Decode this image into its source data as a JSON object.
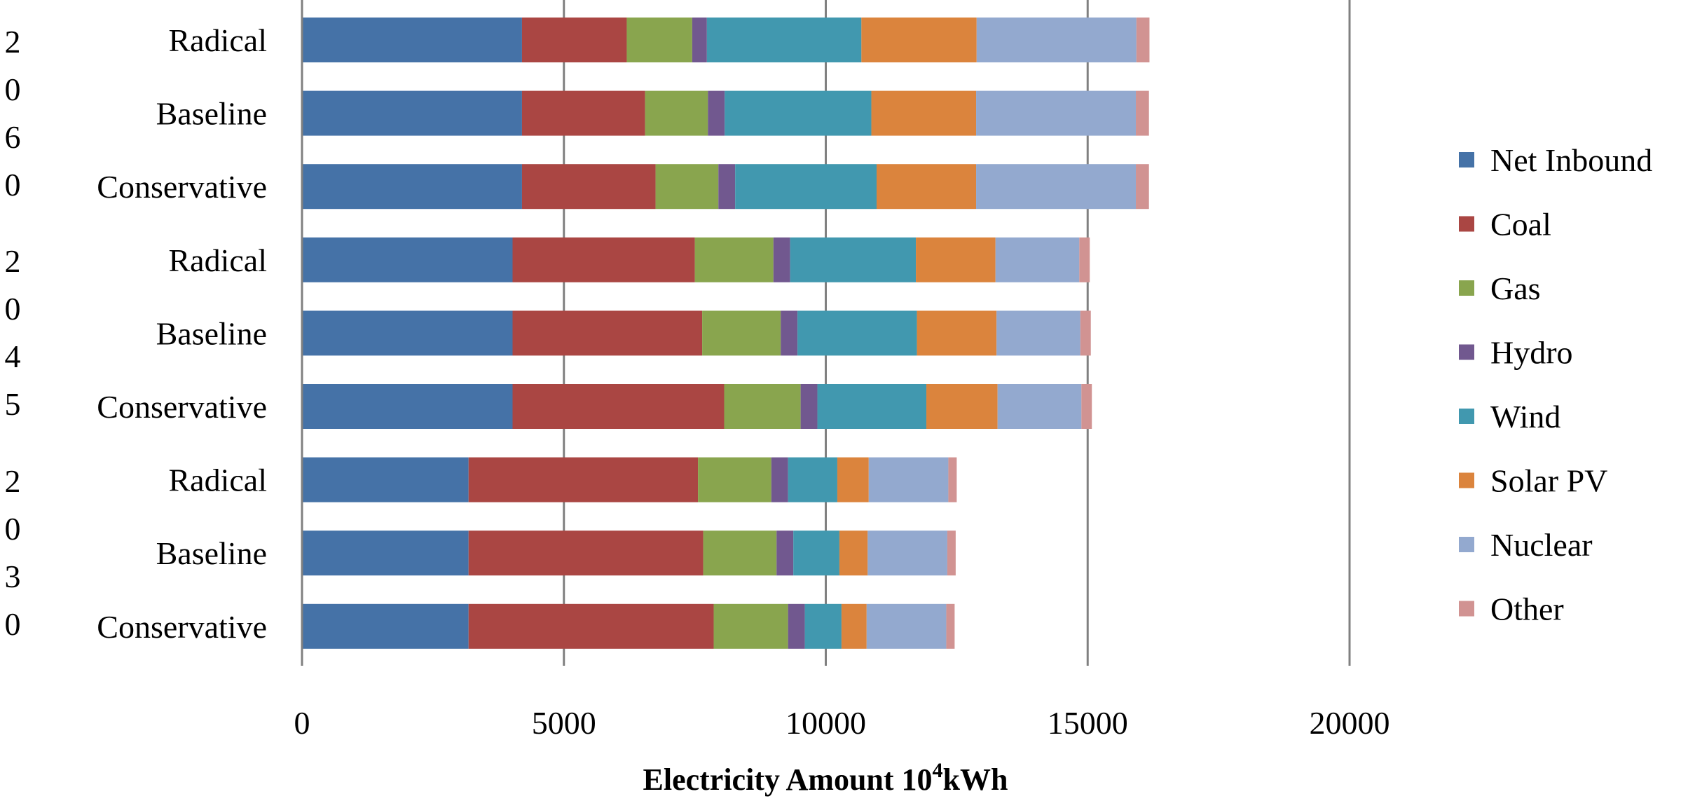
{
  "chart_data": {
    "type": "bar",
    "orientation": "horizontal",
    "stacked": true,
    "xlabel": "Electricity Amount  10",
    "xlabel_superscript": "4",
    "xlabel_suffix": "kWh",
    "xlim": [
      0,
      20000
    ],
    "xticks": [
      "0",
      "5000",
      "10000",
      "15000",
      "20000"
    ],
    "grid": true,
    "legend_position": "right",
    "groups": [
      {
        "year_chars": [
          "2",
          "0",
          "6",
          "0"
        ],
        "categories": [
          "Radical",
          "Baseline",
          "Conservative"
        ]
      },
      {
        "year_chars": [
          "2",
          "0",
          "4",
          "5"
        ],
        "categories": [
          "Radical",
          "Baseline",
          "Conservative"
        ]
      },
      {
        "year_chars": [
          "2",
          "0",
          "3",
          "0"
        ],
        "categories": [
          "Radical",
          "Baseline",
          "Conservative"
        ]
      }
    ],
    "bars": [
      {
        "label": "Radical",
        "values": [
          4200,
          2000,
          1250,
          280,
          2950,
          2200,
          3050,
          250
        ]
      },
      {
        "label": "Baseline",
        "values": [
          4200,
          2350,
          1200,
          320,
          2800,
          2000,
          3050,
          250
        ]
      },
      {
        "label": "Conservative",
        "values": [
          4200,
          2550,
          1200,
          320,
          2700,
          1900,
          3050,
          250
        ]
      },
      {
        "label": "Radical",
        "values": [
          4020,
          3480,
          1500,
          320,
          2400,
          1520,
          1600,
          200
        ]
      },
      {
        "label": "Baseline",
        "values": [
          4020,
          3620,
          1500,
          320,
          2280,
          1520,
          1600,
          200
        ]
      },
      {
        "label": "Conservative",
        "values": [
          4020,
          4040,
          1460,
          320,
          2080,
          1360,
          1600,
          200
        ]
      },
      {
        "label": "Radical",
        "values": [
          3180,
          4380,
          1400,
          320,
          940,
          600,
          1520,
          160
        ]
      },
      {
        "label": "Baseline",
        "values": [
          3180,
          4480,
          1400,
          320,
          880,
          540,
          1520,
          160
        ]
      },
      {
        "label": "Conservative",
        "values": [
          3180,
          4680,
          1420,
          320,
          700,
          480,
          1520,
          160
        ]
      }
    ],
    "series": [
      {
        "name": "Net Inbound",
        "color": "#4572a7"
      },
      {
        "name": "Coal",
        "color": "#aa4643"
      },
      {
        "name": "Gas",
        "color": "#89a54e"
      },
      {
        "name": "Hydro",
        "color": "#71588f"
      },
      {
        "name": "Wind",
        "color": "#4198af"
      },
      {
        "name": "Solar PV",
        "color": "#db843d"
      },
      {
        "name": "Nuclear",
        "color": "#93a9cf"
      },
      {
        "name": "Other",
        "color": "#d19392"
      }
    ],
    "gridline_color": "#808080"
  }
}
